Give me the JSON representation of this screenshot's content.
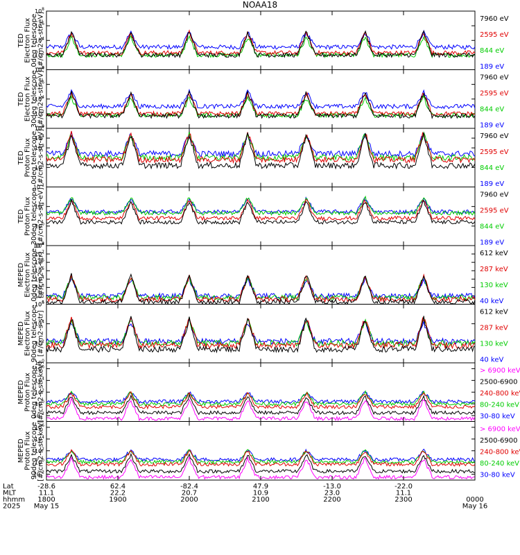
{
  "chart_data": {
    "type": "line",
    "title": "NOAA18",
    "time_axis": {
      "row_labels": [
        "Lat",
        "MLT",
        "hhmm",
        "2025"
      ],
      "columns": [
        {
          "t": 0,
          "lat": "-28.6",
          "mlt": "11.1",
          "hhmm": "1800",
          "date": "May 15"
        },
        {
          "t": 1,
          "lat": "62.4",
          "mlt": "22.2",
          "hhmm": "1900",
          "date": ""
        },
        {
          "t": 2,
          "lat": "-82.4",
          "mlt": "20.7",
          "hhmm": "2000",
          "date": ""
        },
        {
          "t": 3,
          "lat": "47.9",
          "mlt": "10.9",
          "hhmm": "2100",
          "date": ""
        },
        {
          "t": 4,
          "lat": "-13.0",
          "mlt": "23.0",
          "hhmm": "2200",
          "date": ""
        },
        {
          "t": 5,
          "lat": "-22.0",
          "mlt": "11.1",
          "hhmm": "2300",
          "date": ""
        },
        {
          "t": 6,
          "lat": "",
          "mlt": "",
          "hhmm": "0000",
          "date": "May 16"
        }
      ]
    },
    "pass_times_hours": [
      0.35,
      1.18,
      2.0,
      2.82,
      3.64,
      4.46,
      5.28
    ],
    "panels": [
      {
        "ylabel": [
          "TED",
          "Electron Flux",
          "0deg telescope",
          "[#/cm2-s-str-eV]"
        ],
        "yticks": [
          {
            "exp": 0
          },
          {
            "exp": 2
          },
          {
            "exp": 4
          },
          {
            "exp": 6
          },
          {
            "exp": 8
          }
        ],
        "ylim_log10": [
          0,
          8
        ],
        "series": [
          {
            "name": "7960 eV",
            "color": "#000000",
            "level": 2.0
          },
          {
            "name": "2595 eV",
            "color": "#e00000",
            "level": 2.3
          },
          {
            "name": "844 eV",
            "color": "#00cc00",
            "level": 2.0
          },
          {
            "name": "189 eV",
            "color": "#0000ff",
            "level": 3.1
          }
        ]
      },
      {
        "ylabel": [
          "TED",
          "Electron Flux",
          "30deg telescope",
          "[#/cm2-s-str-eV]"
        ],
        "yticks": [
          {
            "exp": 0
          },
          {
            "exp": 2
          },
          {
            "exp": 4
          },
          {
            "exp": 6
          },
          {
            "exp": 8
          }
        ],
        "ylim_log10": [
          0,
          8
        ],
        "series": [
          {
            "name": "7960 eV",
            "color": "#000000",
            "level": 1.7
          },
          {
            "name": "2595 eV",
            "color": "#e00000",
            "level": 2.0
          },
          {
            "name": "844 eV",
            "color": "#00cc00",
            "level": 1.8
          },
          {
            "name": "189 eV",
            "color": "#0000ff",
            "level": 3.0
          }
        ]
      },
      {
        "ylabel": [
          "TED",
          "Proton Flux",
          "0deg telescope",
          "[#/cm2-s-str-eV]"
        ],
        "yticks": [
          {
            "exp": -1
          },
          {
            "exp": 1
          },
          {
            "exp": 3
          },
          {
            "exp": 4
          },
          {
            "exp": 5
          }
        ],
        "ylim_log10": [
          -1,
          5
        ],
        "series": [
          {
            "name": "7960 eV",
            "color": "#000000",
            "level": 1.2
          },
          {
            "name": "2595 eV",
            "color": "#e00000",
            "level": 1.8
          },
          {
            "name": "844 eV",
            "color": "#00cc00",
            "level": 2.0
          },
          {
            "name": "189 eV",
            "color": "#0000ff",
            "level": 2.4
          }
        ]
      },
      {
        "ylabel": [
          "TED",
          "Proton Flux",
          "30deg telescope",
          "[#/cm2-s-str-eV]"
        ],
        "yticks": [
          {
            "exp": -3
          },
          {
            "exp": 0
          },
          {
            "exp": 3
          }
        ],
        "ylim_log10": [
          -3,
          6
        ],
        "series": [
          {
            "name": "7960 eV",
            "color": "#000000",
            "level": 0.6
          },
          {
            "name": "2595 eV",
            "color": "#e00000",
            "level": 1.2
          },
          {
            "name": "844 eV",
            "color": "#00cc00",
            "level": 2.0
          },
          {
            "name": "189 eV",
            "color": "#0000ff",
            "level": 2.2
          }
        ]
      },
      {
        "ylabel": [
          "MEPED",
          "Electron Flux",
          "0deg telescope",
          "[#/cm2-s-str]"
        ],
        "yticks": [
          {
            "exp": 1
          },
          {
            "exp": 2
          },
          {
            "exp": 3
          },
          {
            "exp": 4
          },
          {
            "exp": 5
          },
          {
            "exp": 6
          },
          {
            "exp": 7
          },
          {
            "exp": 8
          }
        ],
        "ylim_log10": [
          1,
          8
        ],
        "series": [
          {
            "name": "612 keV",
            "color": "#000000",
            "level": 1.3
          },
          {
            "name": "287 keV",
            "color": "#e00000",
            "level": 1.6
          },
          {
            "name": "130 keV",
            "color": "#00cc00",
            "level": 1.8
          },
          {
            "name": "40 keV",
            "color": "#0000ff",
            "level": 2.0
          }
        ]
      },
      {
        "ylabel": [
          "MEPED",
          "Electron Flux",
          "90deg telescope",
          "[#/cm2-s-str]"
        ],
        "yticks": [
          {
            "exp": 0
          },
          {
            "exp": 2
          },
          {
            "exp": 4
          },
          {
            "exp": 6
          }
        ],
        "ylim_log10": [
          0,
          6
        ],
        "series": [
          {
            "name": "612 keV",
            "color": "#000000",
            "level": 1.4
          },
          {
            "name": "287 keV",
            "color": "#e00000",
            "level": 1.8
          },
          {
            "name": "130 keV",
            "color": "#00cc00",
            "level": 2.0
          },
          {
            "name": "40 keV",
            "color": "#0000ff",
            "level": 2.2
          }
        ]
      },
      {
        "ylabel": [
          "MEPED",
          "Proton Flux",
          "0deg telescope",
          "[#/cm2-s-str-keV]"
        ],
        "yticks": [
          {
            "exp": -2
          },
          {
            "exp": 0
          },
          {
            "exp": 2
          },
          {
            "exp": 4
          },
          {
            "exp": 6
          }
        ],
        "ylim_log10": [
          -3,
          7
        ],
        "series": [
          {
            "name": "> 6900 keV",
            "color": "#ff00ff",
            "level": -2.5
          },
          {
            "name": "2500-6900 keV",
            "color": "#000000",
            "level": -1.5
          },
          {
            "name": "240-800 keV",
            "color": "#e00000",
            "level": -0.5
          },
          {
            "name": "80-240 keV",
            "color": "#00cc00",
            "level": 0.0
          },
          {
            "name": "30-80 keV",
            "color": "#0000ff",
            "level": 0.4
          }
        ]
      },
      {
        "ylabel": [
          "MEPED",
          "Proton Flux",
          "90deg telescope",
          "[#/cm2-s-str-keV]"
        ],
        "yticks": [
          {
            "exp": -2
          },
          {
            "exp": 0
          },
          {
            "exp": 2
          },
          {
            "exp": 4
          },
          {
            "exp": 6
          }
        ],
        "ylim_log10": [
          -3,
          7
        ],
        "series": [
          {
            "name": "> 6900 keV",
            "color": "#ff00ff",
            "level": -2.5
          },
          {
            "name": "2500-6900 keV",
            "color": "#000000",
            "level": -1.5
          },
          {
            "name": "240-800 keV",
            "color": "#e00000",
            "level": -0.3
          },
          {
            "name": "80-240 keV",
            "color": "#00cc00",
            "level": 0.1
          },
          {
            "name": "30-80 keV",
            "color": "#0000ff",
            "level": 0.5
          }
        ]
      }
    ]
  }
}
